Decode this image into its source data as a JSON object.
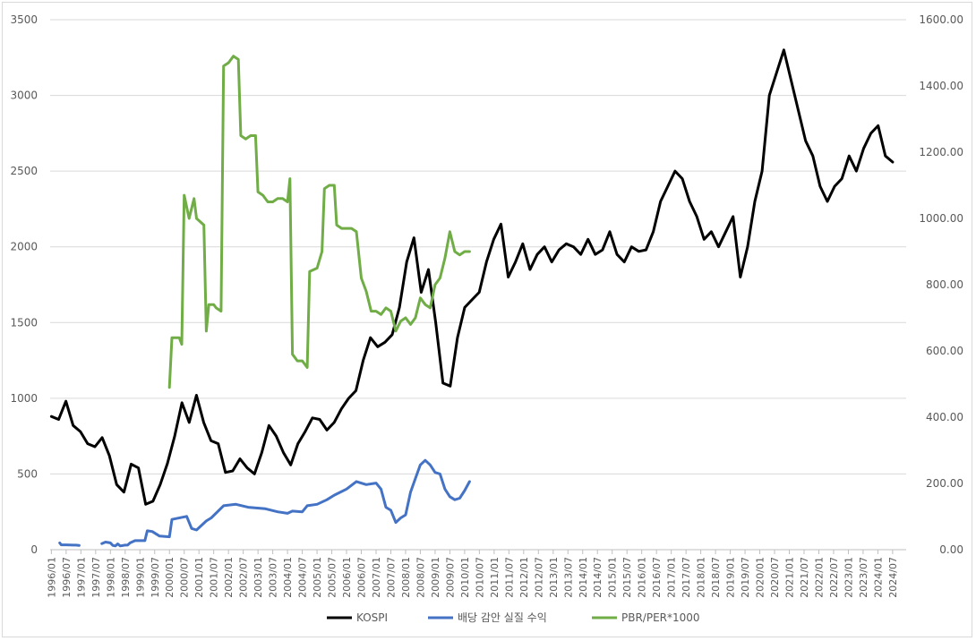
{
  "chart_data": {
    "type": "line",
    "x": [
      "1996/01",
      "1996/07",
      "1997/01",
      "1997/07",
      "1998/01",
      "1998/07",
      "1999/01",
      "1999/07",
      "2000/01",
      "2000/07",
      "2001/01",
      "2001/07",
      "2002/01",
      "2002/07",
      "2003/01",
      "2003/07",
      "2004/01",
      "2004/07",
      "2005/01",
      "2005/07",
      "2006/01",
      "2006/07",
      "2007/01",
      "2007/07",
      "2008/01",
      "2008/07",
      "2009/01",
      "2009/07",
      "2010/01",
      "2010/07",
      "2011/01",
      "2011/07",
      "2012/01",
      "2012/07",
      "2013/01",
      "2013/07",
      "2014/01",
      "2014/07",
      "2015/01",
      "2015/07",
      "2016/01",
      "2016/07",
      "2017/01",
      "2017/07",
      "2018/01",
      "2018/07",
      "2019/01",
      "2019/07",
      "2020/01",
      "2020/07",
      "2021/01",
      "2021/07",
      "2022/01",
      "2022/07",
      "2023/01",
      "2023/07",
      "2024/01",
      "2024/07"
    ],
    "left_ticks": [
      "0",
      "500",
      "1000",
      "1500",
      "2000",
      "2500",
      "3000",
      "3500"
    ],
    "right_ticks": [
      "0.00",
      "200.00",
      "400.00",
      "600.00",
      "800.00",
      "1000.00",
      "1200.00",
      "1400.00",
      "1600.00"
    ],
    "ylim_left": [
      0,
      3500
    ],
    "ylim_right": [
      0,
      1600
    ],
    "grid": true,
    "legend_position": "bottom",
    "series": [
      {
        "name": "KOSPI",
        "axis": "left",
        "color": "#000000",
        "points": [
          [
            0,
            880
          ],
          [
            1,
            860
          ],
          [
            2,
            980
          ],
          [
            3,
            820
          ],
          [
            4,
            780
          ],
          [
            5,
            700
          ],
          [
            6,
            680
          ],
          [
            7,
            740
          ],
          [
            8,
            620
          ],
          [
            9,
            430
          ],
          [
            10,
            380
          ],
          [
            11,
            565
          ],
          [
            12,
            540
          ],
          [
            13,
            300
          ],
          [
            14,
            320
          ],
          [
            15,
            430
          ],
          [
            16,
            570
          ],
          [
            17,
            750
          ],
          [
            18,
            970
          ],
          [
            19,
            840
          ],
          [
            20,
            1020
          ],
          [
            21,
            840
          ],
          [
            22,
            720
          ],
          [
            23,
            700
          ],
          [
            24,
            510
          ],
          [
            25,
            520
          ],
          [
            26,
            600
          ],
          [
            27,
            540
          ],
          [
            28,
            500
          ],
          [
            29,
            640
          ],
          [
            30,
            820
          ],
          [
            31,
            750
          ],
          [
            32,
            640
          ],
          [
            33,
            560
          ],
          [
            34,
            700
          ],
          [
            35,
            780
          ],
          [
            36,
            870
          ],
          [
            37,
            860
          ],
          [
            38,
            790
          ],
          [
            39,
            840
          ],
          [
            40,
            930
          ],
          [
            41,
            1000
          ],
          [
            42,
            1050
          ],
          [
            43,
            1250
          ],
          [
            44,
            1400
          ],
          [
            45,
            1340
          ],
          [
            46,
            1370
          ],
          [
            47,
            1420
          ],
          [
            48,
            1600
          ],
          [
            49,
            1900
          ],
          [
            50,
            2060
          ],
          [
            51,
            1700
          ],
          [
            52,
            1850
          ],
          [
            53,
            1500
          ],
          [
            54,
            1100
          ],
          [
            55,
            1080
          ],
          [
            56,
            1400
          ],
          [
            57,
            1600
          ],
          [
            58,
            1650
          ],
          [
            59,
            1700
          ],
          [
            60,
            1900
          ],
          [
            61,
            2050
          ],
          [
            62,
            2150
          ],
          [
            63,
            1800
          ],
          [
            64,
            1900
          ],
          [
            65,
            2020
          ],
          [
            66,
            1850
          ],
          [
            67,
            1950
          ],
          [
            68,
            2000
          ],
          [
            69,
            1900
          ],
          [
            70,
            1980
          ],
          [
            71,
            2020
          ],
          [
            72,
            2000
          ],
          [
            73,
            1950
          ],
          [
            74,
            2050
          ],
          [
            75,
            1950
          ],
          [
            76,
            1980
          ],
          [
            77,
            2100
          ],
          [
            78,
            1950
          ],
          [
            79,
            1900
          ],
          [
            80,
            2000
          ],
          [
            81,
            1970
          ],
          [
            82,
            1980
          ],
          [
            83,
            2100
          ],
          [
            84,
            2300
          ],
          [
            85,
            2400
          ],
          [
            86,
            2500
          ],
          [
            87,
            2450
          ],
          [
            88,
            2300
          ],
          [
            89,
            2200
          ],
          [
            90,
            2050
          ],
          [
            91,
            2100
          ],
          [
            92,
            2000
          ],
          [
            93,
            2100
          ],
          [
            94,
            2200
          ],
          [
            95,
            1800
          ],
          [
            96,
            2000
          ],
          [
            97,
            2300
          ],
          [
            98,
            2500
          ],
          [
            99,
            3000
          ],
          [
            100,
            3150
          ],
          [
            101,
            3300
          ],
          [
            102,
            3100
          ],
          [
            103,
            2900
          ],
          [
            104,
            2700
          ],
          [
            105,
            2600
          ],
          [
            106,
            2400
          ],
          [
            107,
            2300
          ],
          [
            108,
            2400
          ],
          [
            109,
            2450
          ],
          [
            110,
            2600
          ],
          [
            111,
            2500
          ],
          [
            112,
            2650
          ],
          [
            113,
            2750
          ],
          [
            114,
            2800
          ],
          [
            115,
            2600
          ],
          [
            116,
            2560
          ]
        ]
      },
      {
        "name": "배당 감안 실질 수익",
        "axis": "left",
        "color": "#4472C4",
        "segments": [
          [
            [
              3.4,
              45
            ],
            [
              4,
              32
            ],
            [
              6,
              32
            ],
            [
              9,
              30
            ],
            [
              10,
              30
            ],
            [
              11.3,
              28
            ]
          ],
          [
            [
              20.5,
              40
            ],
            [
              22,
              50
            ],
            [
              24,
              45
            ],
            [
              25,
              28
            ],
            [
              26,
              25
            ],
            [
              27,
              38
            ],
            [
              28,
              25
            ],
            [
              30,
              30
            ],
            [
              31,
              30
            ],
            [
              32,
              45
            ],
            [
              34,
              60
            ],
            [
              38,
              60
            ],
            [
              39,
              125
            ],
            [
              41,
              120
            ],
            [
              44,
              90
            ],
            [
              48,
              85
            ],
            [
              49,
              200
            ],
            [
              55,
              220
            ],
            [
              57,
              140
            ],
            [
              59,
              130
            ],
            [
              63,
              190
            ],
            [
              65,
              210
            ],
            [
              70,
              290
            ],
            [
              75,
              300
            ],
            [
              80,
              280
            ],
            [
              87,
              270
            ],
            [
              92,
              250
            ],
            [
              96,
              240
            ],
            [
              98,
              255
            ],
            [
              102,
              250
            ],
            [
              104,
              290
            ],
            [
              108,
              300
            ],
            [
              112,
              330
            ],
            [
              115,
              360
            ],
            [
              120,
              400
            ],
            [
              124,
              450
            ],
            [
              128,
              430
            ],
            [
              132,
              440
            ],
            [
              134,
              400
            ],
            [
              136,
              280
            ],
            [
              138,
              260
            ],
            [
              140,
              180
            ],
            [
              142,
              210
            ],
            [
              144,
              230
            ],
            [
              146,
              380
            ],
            [
              148,
              470
            ],
            [
              150,
              560
            ],
            [
              152,
              590
            ],
            [
              154,
              560
            ],
            [
              156,
              510
            ],
            [
              158,
              500
            ],
            [
              160,
              400
            ],
            [
              162,
              350
            ],
            [
              164,
              330
            ],
            [
              166,
              340
            ],
            [
              168,
              390
            ],
            [
              170,
              450
            ]
          ]
        ]
      },
      {
        "name": "PBR/PER*1000",
        "axis": "right",
        "color": "#70AD47",
        "segments": [
          [
            [
              48,
              490
            ],
            [
              49,
              640
            ],
            [
              52,
              640
            ],
            [
              53,
              620
            ],
            [
              54,
              1070
            ],
            [
              56,
              1000
            ],
            [
              58,
              1060
            ],
            [
              59,
              1000
            ],
            [
              62,
              980
            ],
            [
              63,
              660
            ],
            [
              64,
              740
            ],
            [
              66,
              740
            ],
            [
              67,
              730
            ],
            [
              69,
              720
            ],
            [
              70,
              1460
            ],
            [
              72,
              1470
            ],
            [
              74,
              1490
            ],
            [
              76,
              1480
            ],
            [
              77,
              1250
            ],
            [
              79,
              1240
            ],
            [
              81,
              1250
            ],
            [
              83,
              1250
            ],
            [
              84,
              1080
            ],
            [
              86,
              1070
            ],
            [
              88,
              1050
            ],
            [
              90,
              1050
            ],
            [
              92,
              1060
            ],
            [
              94,
              1060
            ],
            [
              96,
              1050
            ],
            [
              97,
              1120
            ],
            [
              98,
              590
            ],
            [
              100,
              570
            ],
            [
              102,
              570
            ],
            [
              104,
              550
            ],
            [
              105,
              840
            ],
            [
              108,
              850
            ],
            [
              110,
              900
            ],
            [
              111,
              1090
            ],
            [
              113,
              1100
            ],
            [
              115,
              1100
            ],
            [
              116,
              980
            ],
            [
              118,
              970
            ],
            [
              122,
              970
            ],
            [
              124,
              960
            ],
            [
              126,
              820
            ],
            [
              128,
              780
            ],
            [
              130,
              720
            ],
            [
              132,
              720
            ],
            [
              134,
              710
            ],
            [
              136,
              730
            ],
            [
              138,
              720
            ],
            [
              140,
              660
            ],
            [
              142,
              690
            ],
            [
              144,
              700
            ],
            [
              146,
              680
            ],
            [
              148,
              700
            ],
            [
              150,
              760
            ],
            [
              152,
              740
            ],
            [
              154,
              730
            ],
            [
              156,
              800
            ],
            [
              158,
              820
            ],
            [
              160,
              880
            ],
            [
              162,
              960
            ],
            [
              164,
              900
            ],
            [
              166,
              890
            ],
            [
              168,
              900
            ],
            [
              170,
              900
            ]
          ]
        ]
      }
    ]
  }
}
